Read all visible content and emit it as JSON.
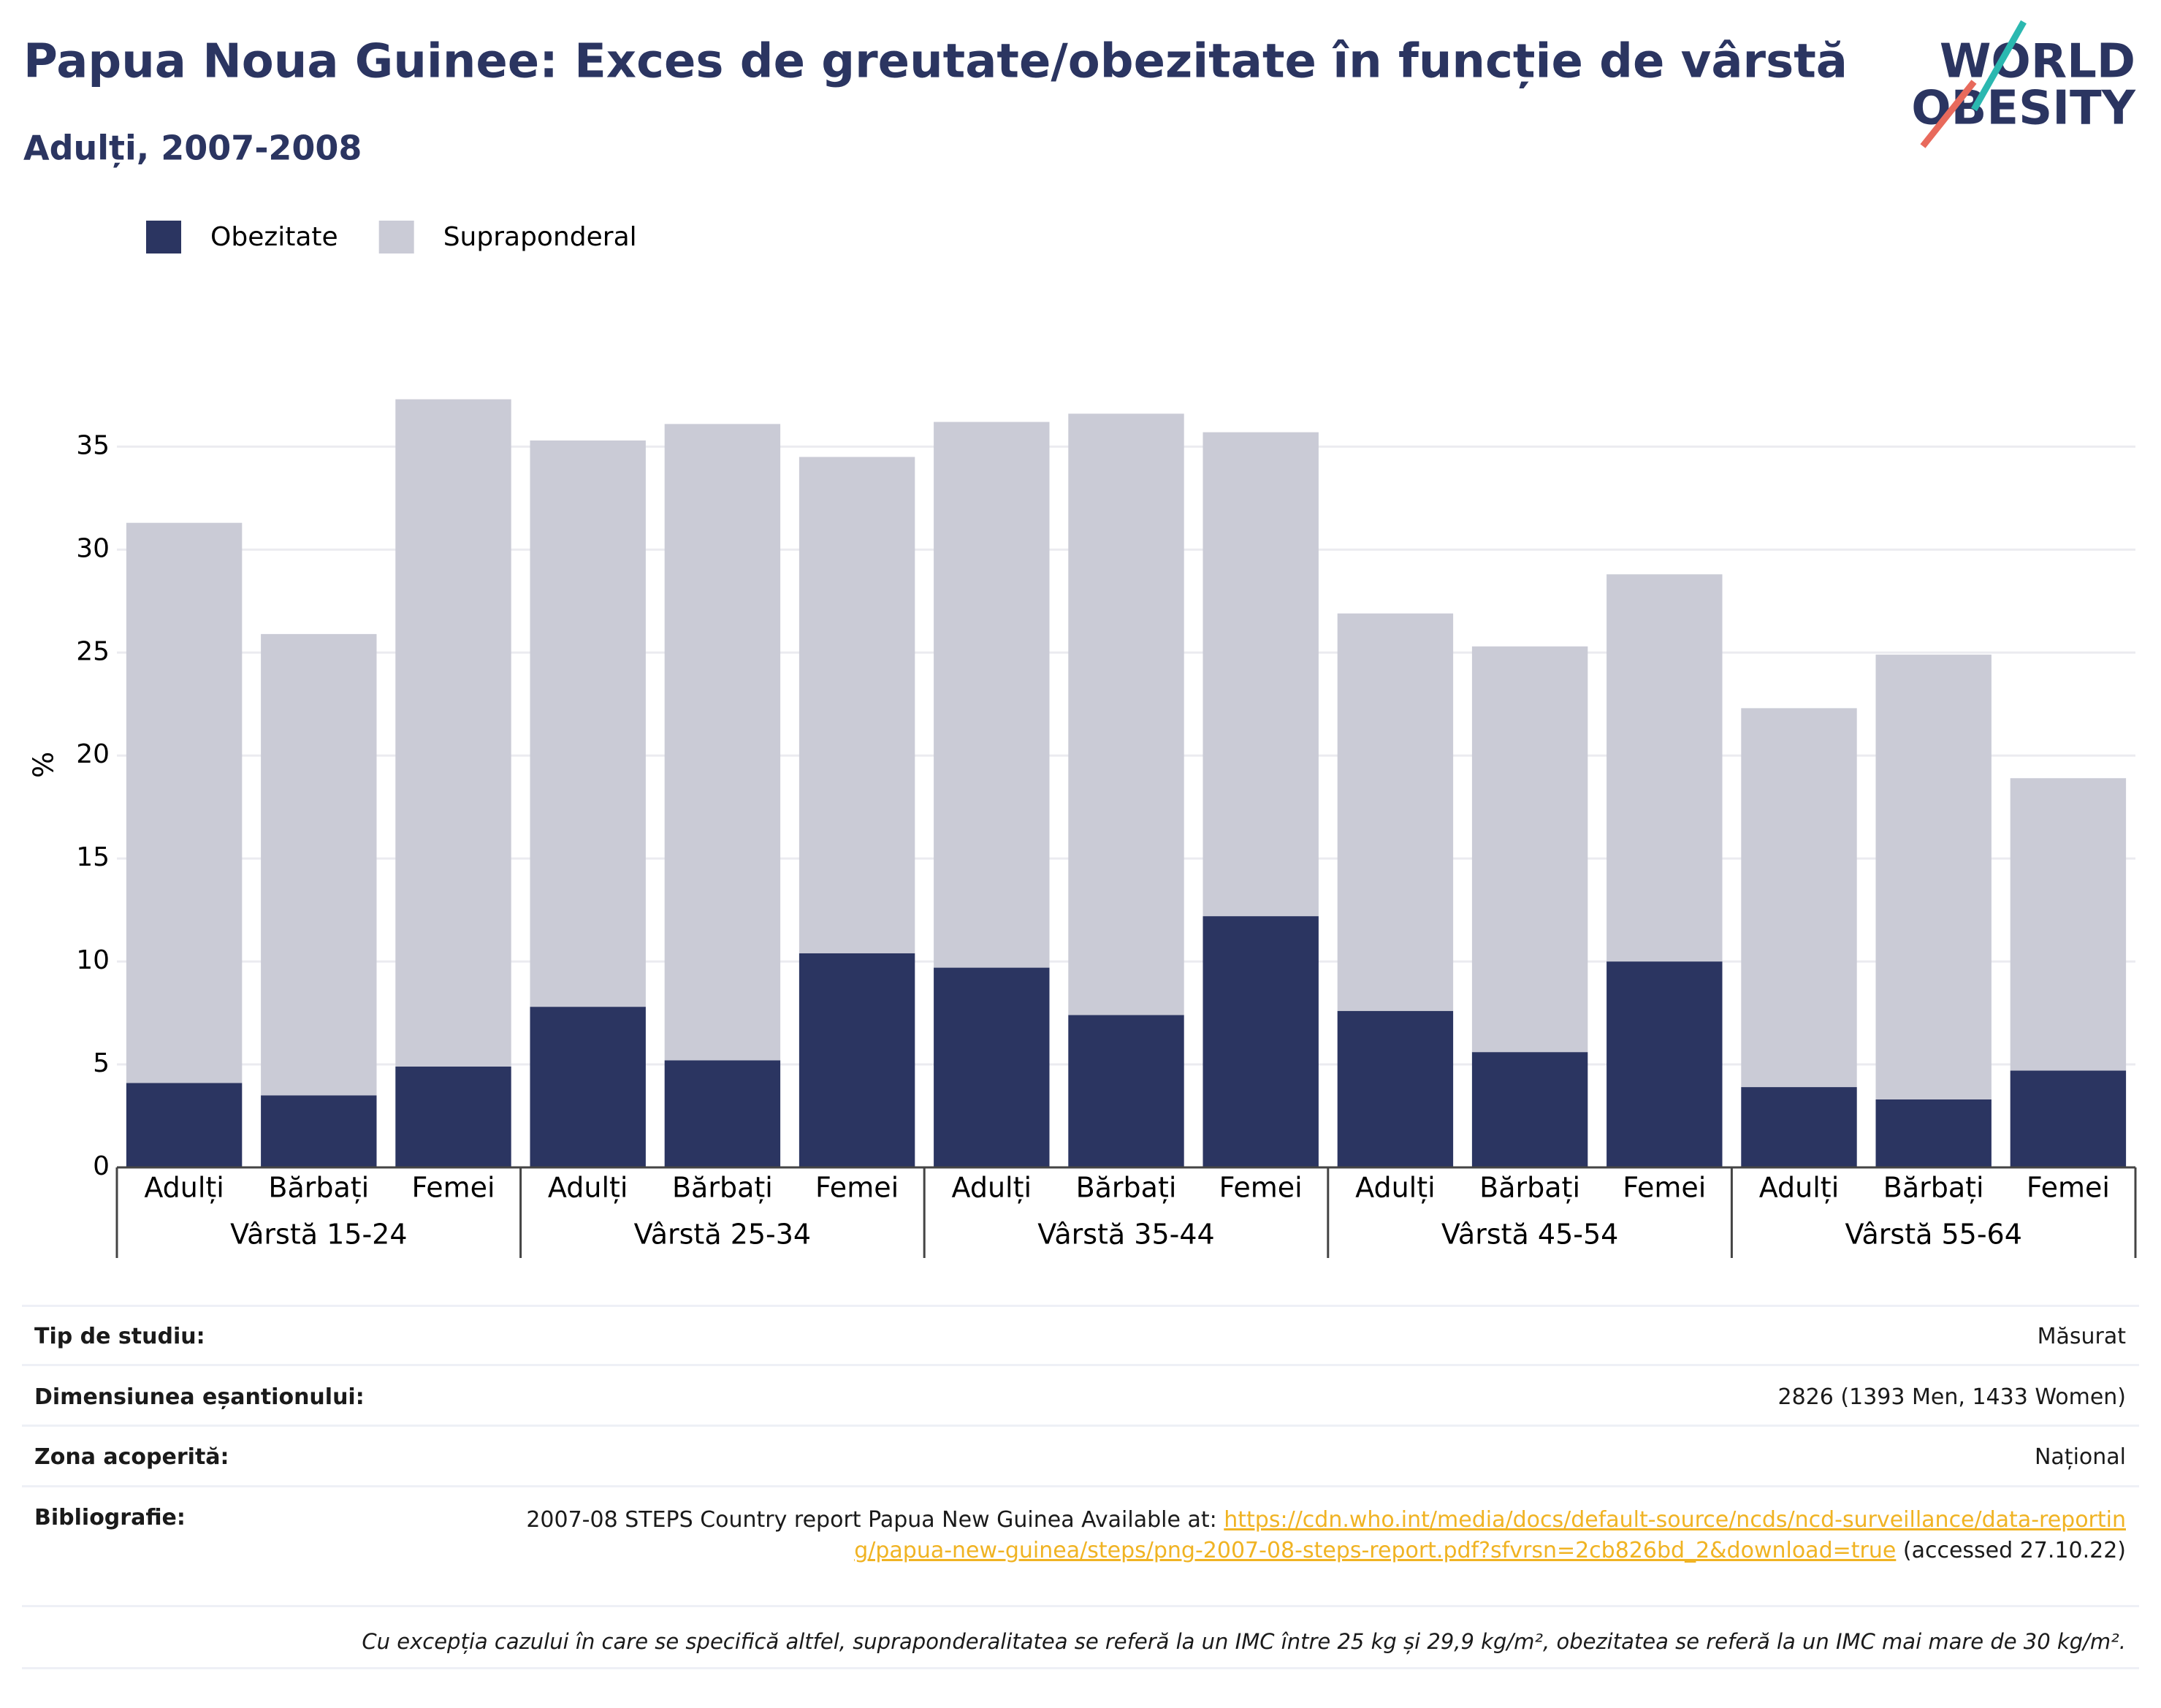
{
  "chart_data": {
    "type": "stacked_bar",
    "title": "Papua Noua Guinee: Exces de greutate/obezitate în funcție de vârstă",
    "subtitle": "Adulți, 2007-2008",
    "y_label": "%",
    "categories": [
      "Adulți",
      "Bărbați",
      "Femei",
      "Adulți",
      "Bărbați",
      "Femei",
      "Adulți",
      "Bărbați",
      "Femei",
      "Adulți",
      "Bărbați",
      "Femei",
      "Adulți",
      "Bărbați",
      "Femei"
    ],
    "groups": [
      "Vârstă 15-24",
      "Vârstă 25-34",
      "Vârstă 35-44",
      "Vârstă 45-54",
      "Vârstă 55-64"
    ],
    "series": [
      {
        "name": "Obezitate",
        "color": "#2b3561",
        "values": [
          4.1,
          3.5,
          4.9,
          7.8,
          5.2,
          10.4,
          9.7,
          7.4,
          12.2,
          7.6,
          5.6,
          10.0,
          3.9,
          3.3,
          4.7
        ]
      },
      {
        "name": "Supraponderal",
        "color": "#cacbd6",
        "values": [
          27.2,
          22.4,
          32.4,
          27.5,
          30.9,
          24.1,
          26.5,
          29.2,
          23.5,
          19.3,
          19.7,
          18.8,
          18.4,
          21.6,
          14.2
        ]
      }
    ],
    "ylim": [
      0,
      39.2
    ],
    "yticks": [
      0,
      5,
      10,
      15,
      20,
      25,
      30,
      35
    ],
    "grid": true
  },
  "logo": {
    "line1": "WORLD",
    "line2": "OBESITY"
  },
  "details": [
    {
      "label": "Tip de studiu:",
      "value": "Măsurat"
    },
    {
      "label": "Dimensiunea eșantionului:",
      "value": "2826 (1393 Men, 1433 Women)"
    },
    {
      "label": "Zona acoperită:",
      "value": "Național"
    }
  ],
  "bibliography": {
    "label": "Bibliografie:",
    "text": "2007-08 STEPS Country report Papua New Guinea Available at: ",
    "link": "https://cdn.who.int/media/docs/default-source/ncds/ncd-surveillance/data-reporting/papua-new-guinea/steps/png-2007-08-steps-report.pdf?sfvrsn=2cb826bd_2&download=true",
    "after": " (accessed 27.10.22)"
  },
  "footnote": "Cu excepția cazului în care se specifică altfel, supraponderalitatea se referă la un IMC între 25 kg și 29,9 kg/m², obezitatea se referă la un IMC mai mare de 30 kg/m²."
}
